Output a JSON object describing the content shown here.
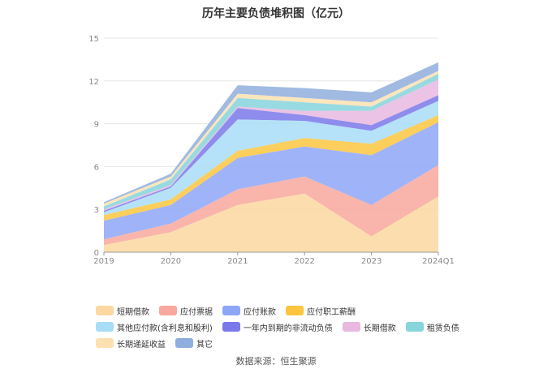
{
  "chart_data": {
    "type": "area",
    "stacked": true,
    "title": "历年主要负债堆积图（亿元）",
    "categories": [
      "2019",
      "2020",
      "2021",
      "2022",
      "2023",
      "2024Q1"
    ],
    "ylim": [
      0,
      15
    ],
    "yticks": [
      "0",
      "3",
      "6",
      "9",
      "12",
      "15"
    ],
    "grid": true,
    "legend_position": "bottom",
    "series": [
      {
        "name": "短期借款",
        "color": "#fcd8a0",
        "values": [
          0.5,
          1.4,
          3.3,
          4.1,
          1.1,
          3.9
        ]
      },
      {
        "name": "应付票据",
        "color": "#f8a89c",
        "values": [
          0.4,
          0.6,
          1.1,
          1.2,
          2.2,
          2.2
        ]
      },
      {
        "name": "应付账款",
        "color": "#8ea6f8",
        "values": [
          1.3,
          1.3,
          2.2,
          2.1,
          3.5,
          3.0
        ]
      },
      {
        "name": "应付职工薪酬",
        "color": "#fbc53f",
        "values": [
          0.4,
          0.4,
          0.5,
          0.6,
          0.8,
          0.5
        ]
      },
      {
        "name": "其他应付款(含利息和股利)",
        "color": "#a8ddf7",
        "values": [
          0.2,
          0.8,
          2.2,
          1.2,
          0.9,
          1.0
        ]
      },
      {
        "name": "一年内到期的非流动负债",
        "color": "#7a78ea",
        "values": [
          0.1,
          0.1,
          0.8,
          0.4,
          0.4,
          0.4
        ]
      },
      {
        "name": "长期借款",
        "color": "#e8b8e0",
        "values": [
          0.1,
          0.1,
          0.1,
          0.3,
          1.0,
          1.1
        ]
      },
      {
        "name": "租赁负债",
        "color": "#86d4dc",
        "values": [
          0.2,
          0.4,
          0.6,
          0.6,
          0.3,
          0.4
        ]
      },
      {
        "name": "长期递延收益",
        "color": "#fde0b0",
        "values": [
          0.2,
          0.2,
          0.3,
          0.3,
          0.3,
          0.2
        ]
      },
      {
        "name": "其它",
        "color": "#8faedd",
        "values": [
          0.1,
          0.2,
          0.6,
          0.7,
          0.7,
          0.6
        ]
      }
    ]
  },
  "footer": {
    "source": "数据来源：恒生聚源"
  }
}
